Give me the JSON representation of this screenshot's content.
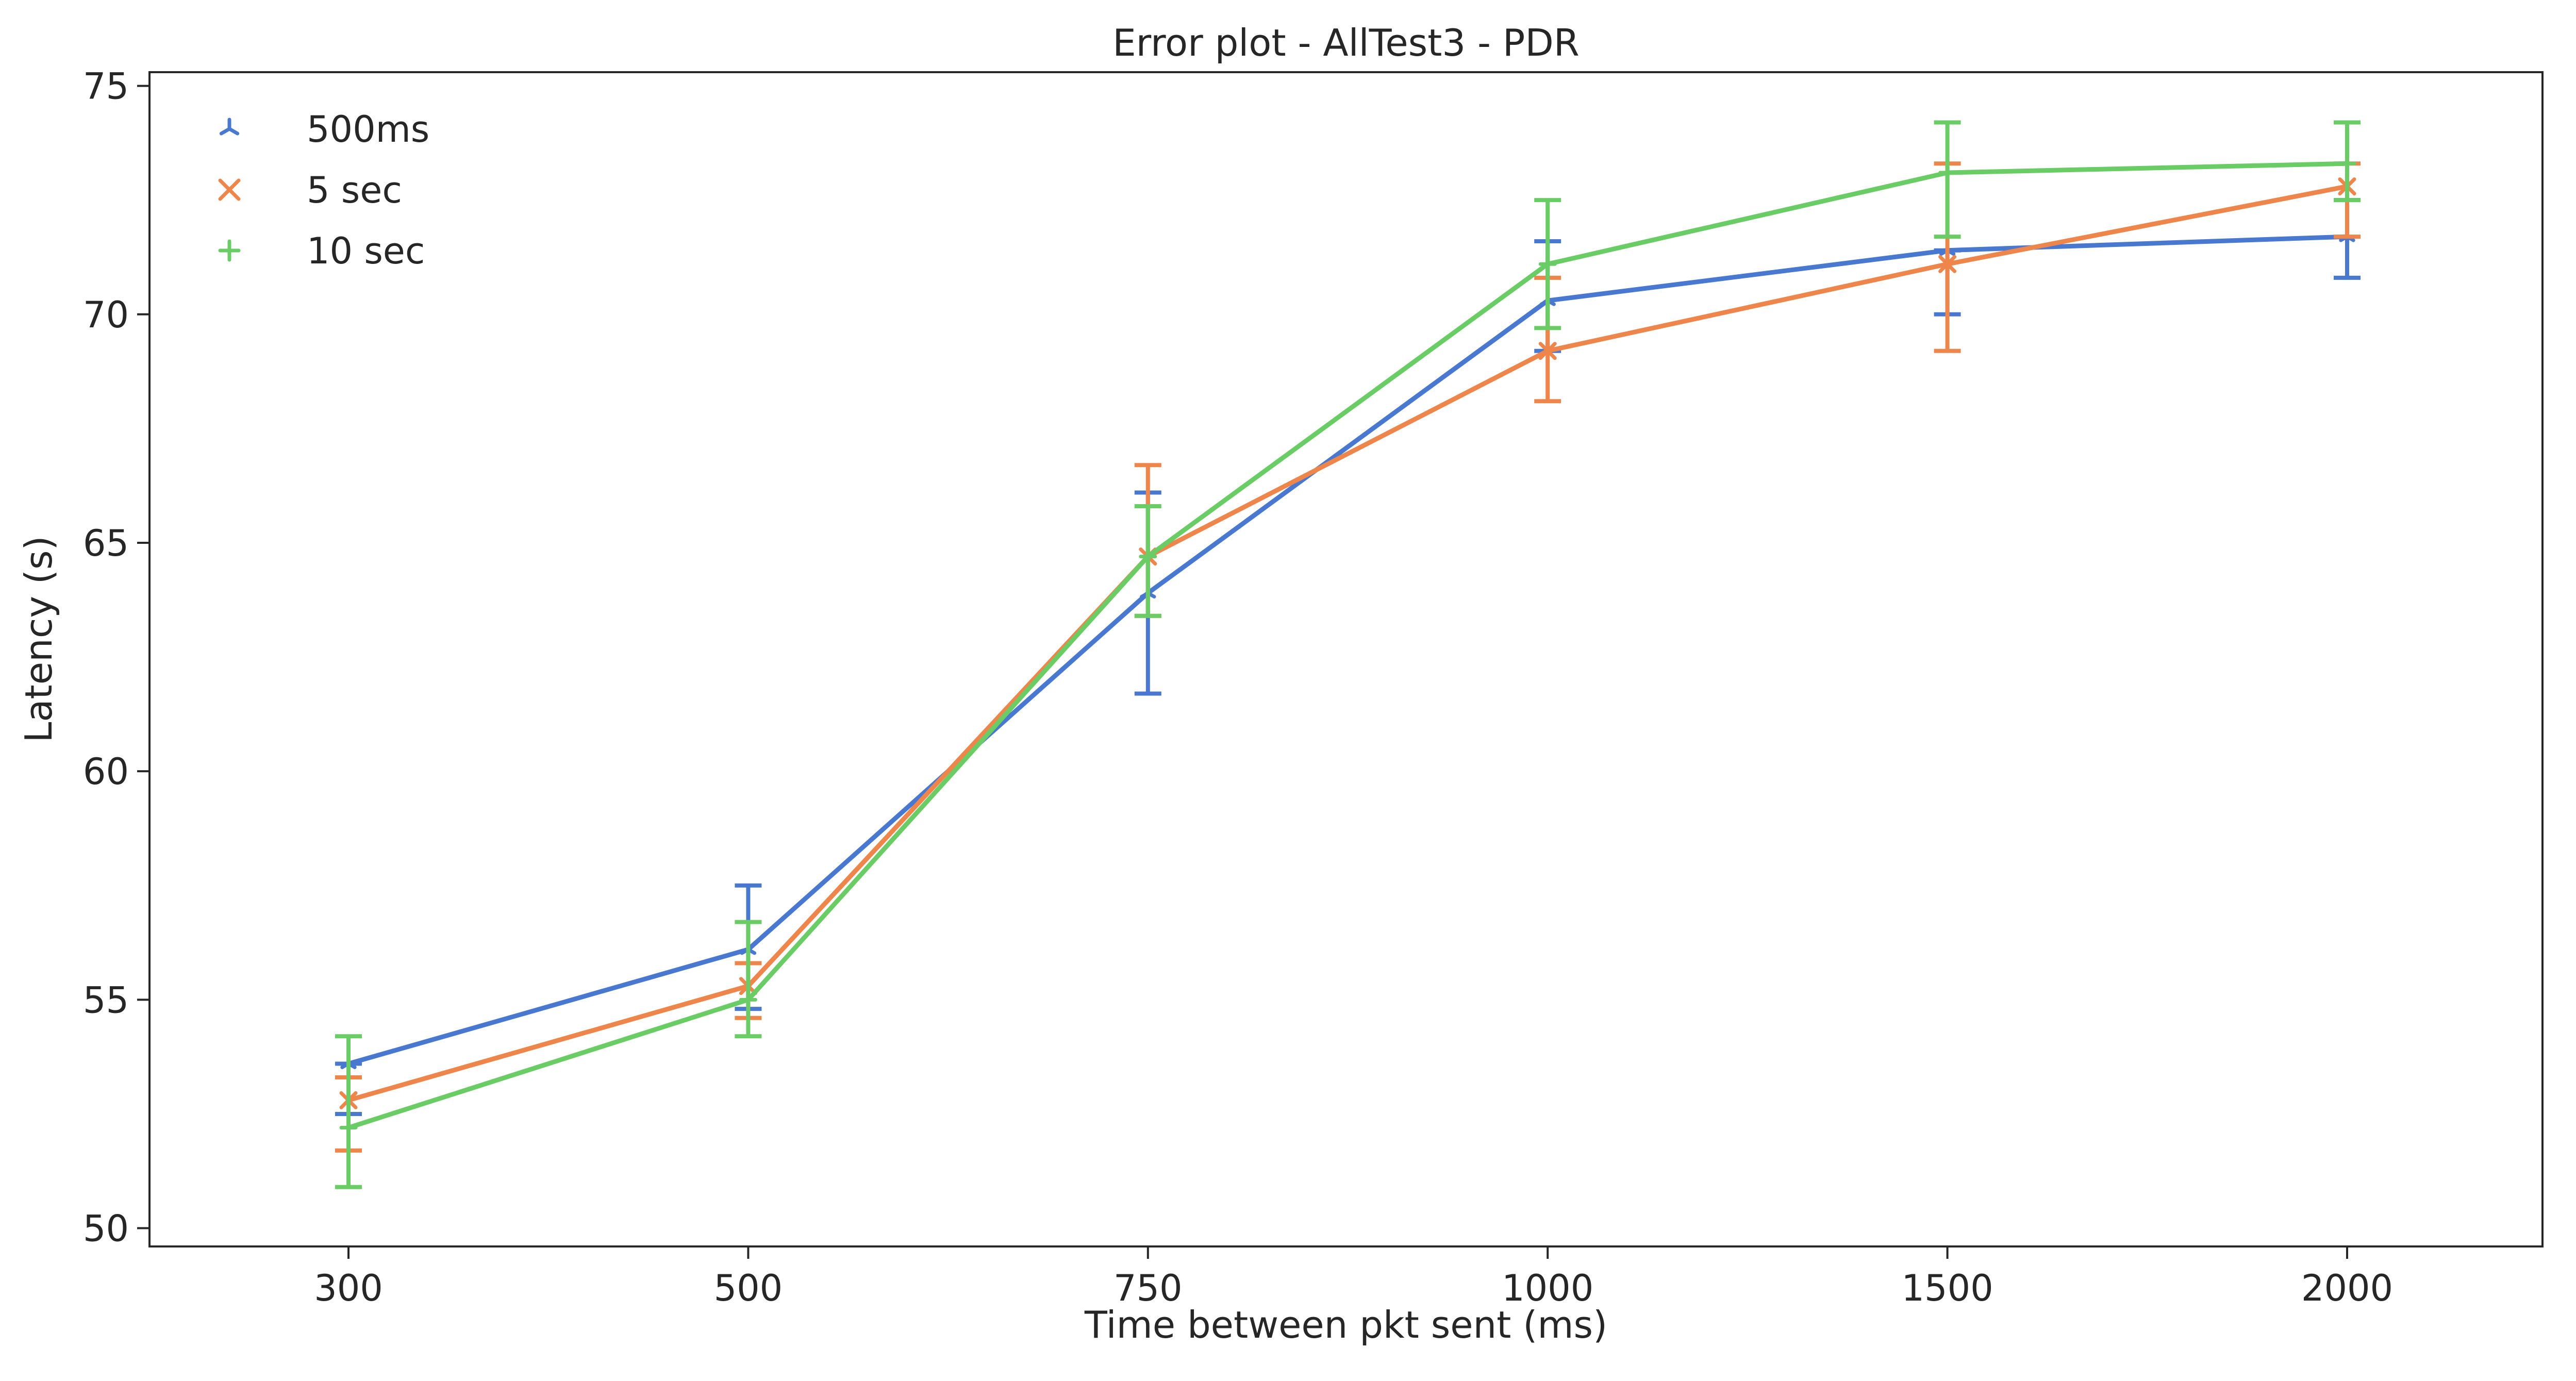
{
  "chart_data": {
    "type": "line",
    "title": "Error plot - AllTest3 - PDR",
    "xlabel": "Time between pkt sent (ms)",
    "ylabel": "Latency (s)",
    "categories": [
      "300",
      "500",
      "750",
      "1000",
      "1500",
      "2000"
    ],
    "y_ticks": [
      "50",
      "55",
      "60",
      "65",
      "70",
      "75"
    ],
    "ylim": [
      49.6,
      75.3
    ],
    "grid": false,
    "legend_position": "top-left",
    "series": [
      {
        "name": "500ms",
        "color": "#4878cf",
        "marker": "tri-down",
        "values": [
          53.6,
          56.1,
          63.9,
          70.3,
          71.4,
          71.7
        ],
        "error_low": [
          52.5,
          54.8,
          61.7,
          69.2,
          70.0,
          70.8
        ],
        "error_high": [
          53.6,
          57.5,
          66.1,
          71.6,
          71.4,
          72.5
        ]
      },
      {
        "name": "5 sec",
        "color": "#ee854a",
        "marker": "x",
        "values": [
          52.8,
          55.3,
          64.7,
          69.2,
          71.1,
          72.8
        ],
        "error_low": [
          51.7,
          54.6,
          63.4,
          68.1,
          69.2,
          71.7
        ],
        "error_high": [
          53.3,
          55.8,
          66.7,
          70.8,
          73.3,
          73.3
        ]
      },
      {
        "name": "10 sec",
        "color": "#6acc65",
        "marker": "plus",
        "values": [
          52.2,
          55.0,
          64.7,
          71.1,
          73.1,
          73.3
        ],
        "error_low": [
          50.9,
          54.2,
          63.4,
          69.7,
          71.7,
          72.5
        ],
        "error_high": [
          54.2,
          56.7,
          65.8,
          72.5,
          74.2,
          74.2
        ]
      }
    ]
  }
}
